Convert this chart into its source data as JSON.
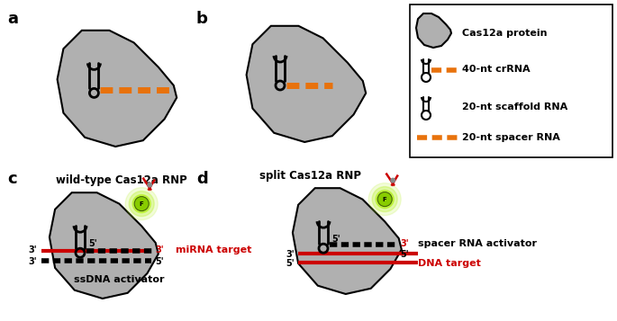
{
  "orange": "#E8720C",
  "red": "#CC0000",
  "gray": "#B0B0B0",
  "black": "#000000",
  "green_bright": "#AAEE00",
  "green_dark": "#88CC00",
  "white": "#FFFFFF",
  "panel_a_title": "wild-type Cas12a RNP",
  "panel_b_title": "split Cas12a RNP",
  "mirna_label": "miRNA target",
  "ssdna_label": "ssDNA activator",
  "spacer_rna_label": "spacer RNA activator",
  "dna_label": "DNA target",
  "legend_item1": "Cas12a protein",
  "legend_item2": "40-nt crRNA",
  "legend_item3": "20-nt scaffold RNA",
  "legend_item4": "20-nt spacer RNA"
}
